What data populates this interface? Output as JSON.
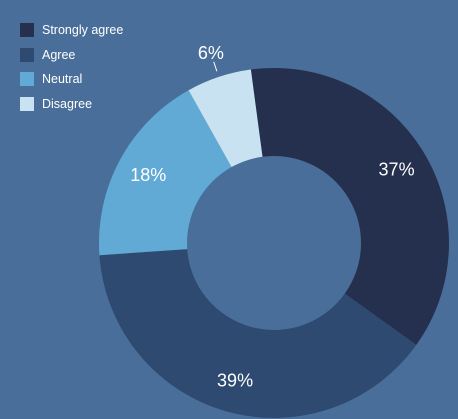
{
  "chart_data": {
    "type": "pie",
    "variant": "donut",
    "categories": [
      "Strongly agree",
      "Agree",
      "Neutral",
      "Disagree"
    ],
    "values": [
      37,
      39,
      18,
      6
    ],
    "labels": [
      "37%",
      "39%",
      "18%",
      "6%"
    ],
    "colors": [
      "#25304f",
      "#2e4a70",
      "#62aad6",
      "#c8e2f1"
    ],
    "legend_position": "top-left",
    "background": "#4a6e9a"
  }
}
